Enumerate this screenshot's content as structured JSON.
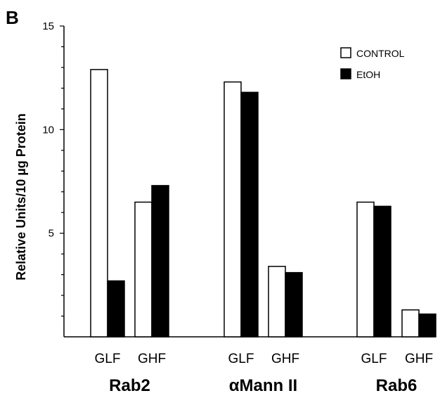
{
  "panel_label": "B",
  "colors": {
    "control": "#ffffff",
    "etoh": "#000000",
    "axis": "#000000"
  },
  "chart_data": {
    "type": "bar",
    "ylabel": "Relative Units/10 µg Protein",
    "ylim": [
      0,
      15
    ],
    "yticks": [
      5,
      10,
      15
    ],
    "minor_tick_step": 1,
    "legend_position": "top-right",
    "groups": [
      {
        "name": "Rab2",
        "categories": [
          "GLF",
          "GHF"
        ]
      },
      {
        "name": "αMann II",
        "categories": [
          "GLF",
          "GHF"
        ]
      },
      {
        "name": "Rab6",
        "categories": [
          "GLF",
          "GHF"
        ]
      }
    ],
    "categories": [
      "GLF",
      "GHF",
      "GLF",
      "GHF",
      "GLF",
      "GHF"
    ],
    "series": [
      {
        "name": "CONTROL",
        "values": [
          12.9,
          6.5,
          12.3,
          3.4,
          6.5,
          1.3
        ]
      },
      {
        "name": "EtOH",
        "values": [
          2.7,
          7.3,
          11.8,
          3.1,
          6.3,
          1.1
        ]
      }
    ]
  }
}
